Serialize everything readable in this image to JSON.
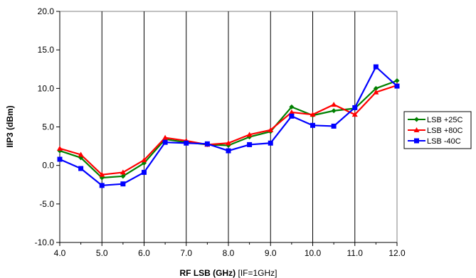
{
  "chart_data": {
    "type": "line",
    "xlabel": "RF LSB (GHz)",
    "xlabel_note": "[IF=1GHz]",
    "ylabel": "IIP3 (dBm)",
    "xlim": [
      4.0,
      12.0
    ],
    "ylim": [
      -10.0,
      20.0
    ],
    "x_ticks": [
      "4.0",
      "5.0",
      "6.0",
      "7.0",
      "8.0",
      "9.0",
      "10.0",
      "11.0",
      "12.0"
    ],
    "y_ticks": [
      "20.0",
      "15.0",
      "10.0",
      "5.0",
      "0.0",
      "-5.0",
      "-10.0"
    ],
    "grid": "vertical",
    "legend_position": "right",
    "x": [
      4.0,
      4.5,
      5.0,
      5.5,
      6.0,
      6.5,
      7.0,
      7.5,
      8.0,
      8.5,
      9.0,
      9.5,
      10.0,
      10.5,
      11.0,
      11.5,
      12.0
    ],
    "series": [
      {
        "name": "LSB +25C",
        "color": "#008000",
        "marker": "diamond",
        "values": [
          1.9,
          1.0,
          -1.6,
          -1.4,
          0.3,
          3.4,
          3.0,
          2.7,
          2.6,
          3.7,
          4.4,
          7.6,
          6.5,
          7.1,
          7.4,
          10.0,
          11.0
        ]
      },
      {
        "name": "LSB +80C",
        "color": "#ff0000",
        "marker": "triangle",
        "values": [
          2.2,
          1.4,
          -1.2,
          -0.9,
          0.7,
          3.6,
          3.2,
          2.7,
          2.9,
          4.0,
          4.6,
          6.9,
          6.6,
          7.9,
          6.6,
          9.5,
          10.4
        ]
      },
      {
        "name": "LSB -40C",
        "color": "#0000ff",
        "marker": "square",
        "values": [
          0.8,
          -0.4,
          -2.6,
          -2.4,
          -0.9,
          3.0,
          2.9,
          2.8,
          1.9,
          2.7,
          2.9,
          6.4,
          5.2,
          5.1,
          7.5,
          12.8,
          10.3
        ]
      }
    ]
  }
}
